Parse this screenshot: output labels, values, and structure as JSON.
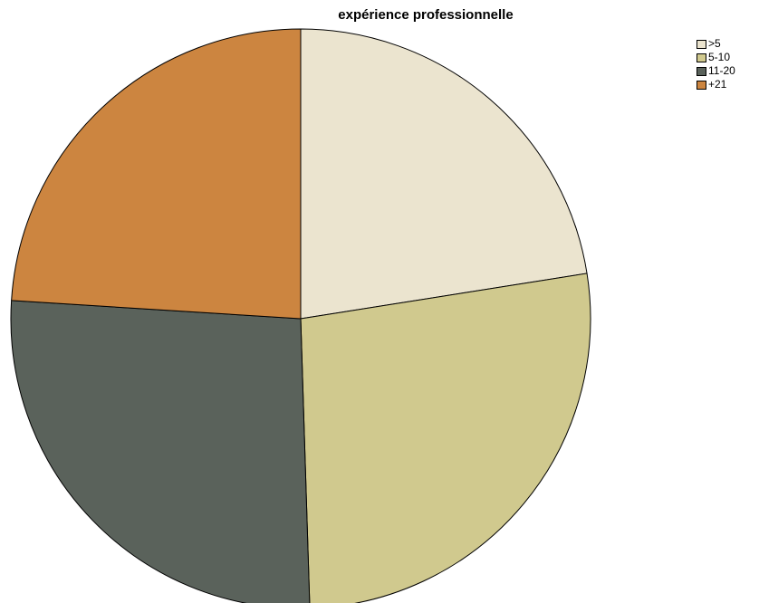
{
  "chart_data": {
    "type": "pie",
    "title": "expérience professionnelle",
    "categories": [
      ">5",
      "5-10",
      "11-20",
      "+21"
    ],
    "values": [
      22.5,
      27.0,
      26.5,
      24.0
    ],
    "colors": [
      "#ebe4cf",
      "#d0c98e",
      "#5a625b",
      "#cc8540"
    ],
    "start_angle_deg": 0,
    "direction": "clockwise",
    "legend_position": "top-right",
    "outline_color": "#000000"
  }
}
